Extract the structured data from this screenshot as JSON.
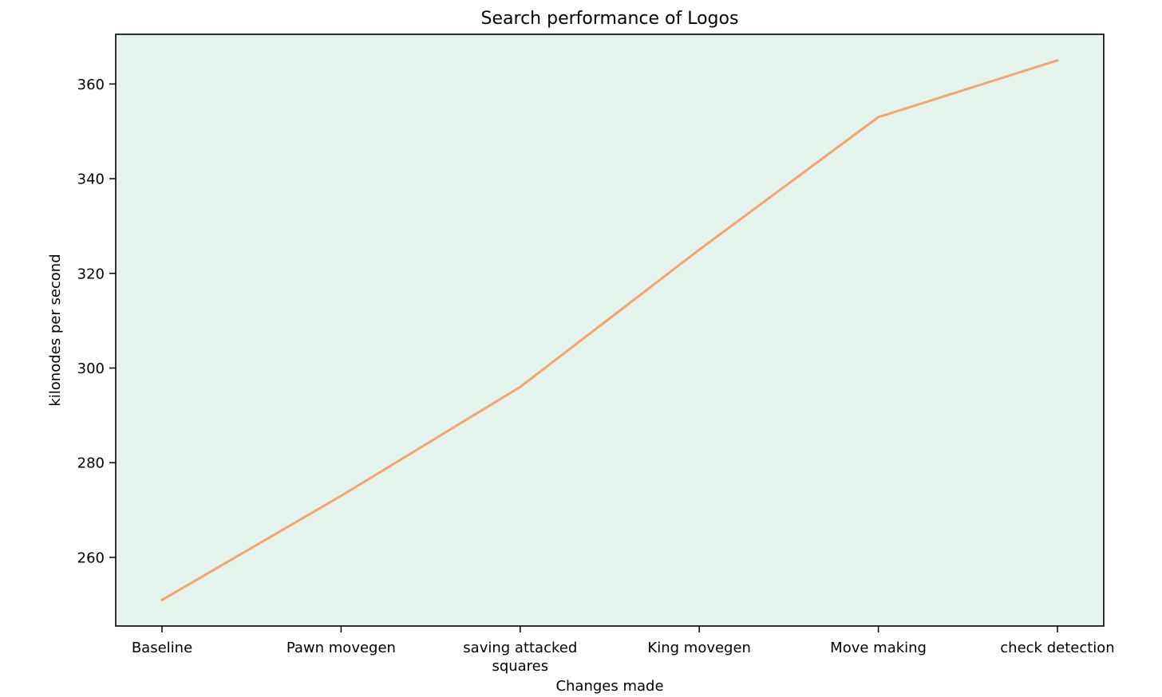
{
  "chart_data": {
    "type": "line",
    "title": "Search performance of Logos",
    "xlabel": "Changes made",
    "ylabel": "kilonodes per second",
    "categories": [
      "Baseline",
      "Pawn movegen",
      "saving attacked\nsquares",
      "King movegen",
      "Move making",
      "check detection"
    ],
    "values": [
      251,
      273,
      296,
      325,
      353,
      365
    ],
    "yticks": [
      260,
      280,
      300,
      320,
      340,
      360
    ],
    "ylim": [
      245.5,
      370.5
    ],
    "grid": false,
    "legend": "none",
    "line_color": "#f2a56e",
    "plot_background": "#e4f3eb",
    "axis_color": "#000000",
    "figure_background": "#ffffff"
  }
}
